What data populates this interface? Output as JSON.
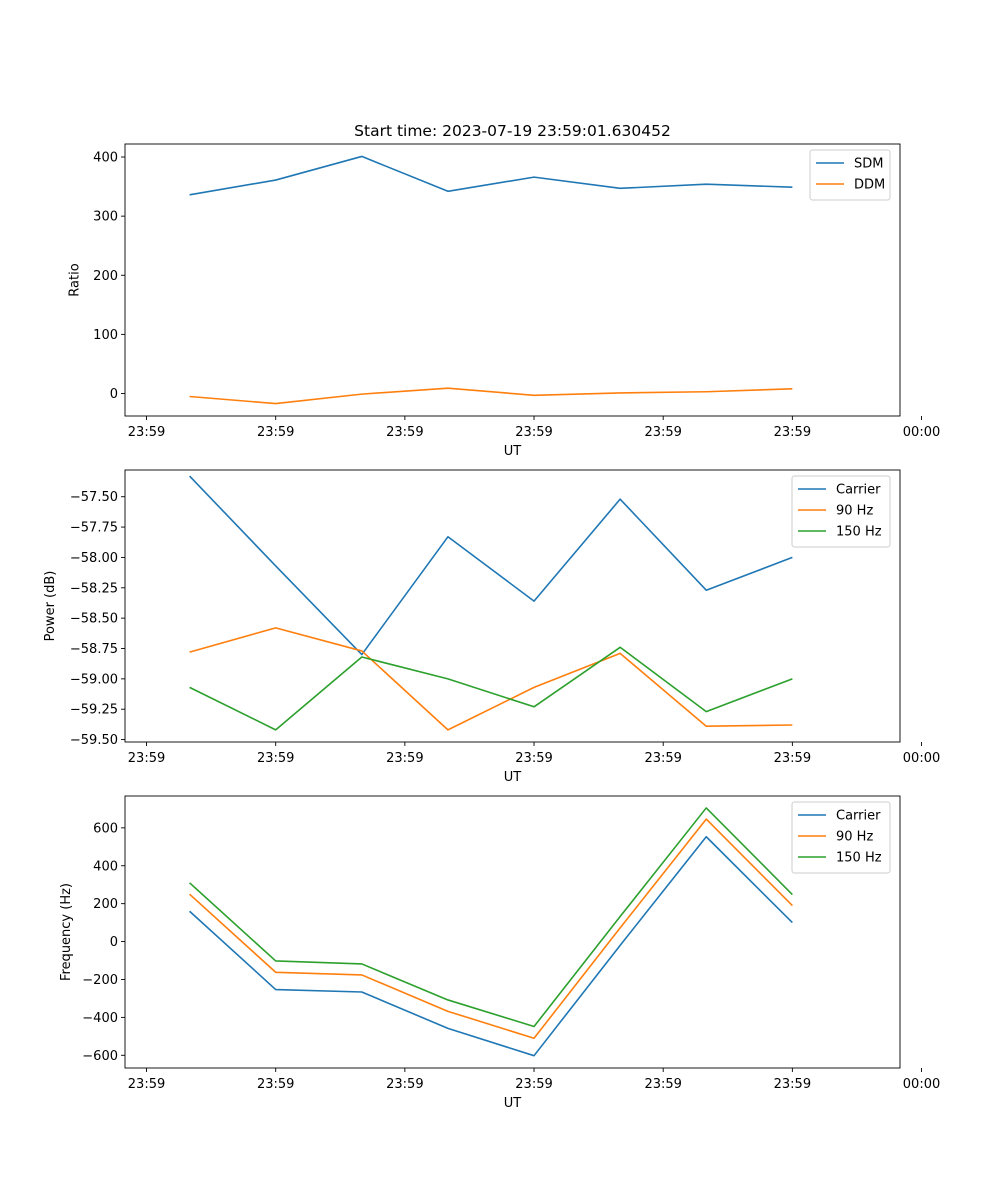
{
  "colors": {
    "series_1": "#1f77b4",
    "series_2": "#ff7f0e",
    "series_3": "#2ca02c",
    "axes": "#000000",
    "legend_border": "#cccccc"
  },
  "chart_data": [
    {
      "type": "line",
      "title": "Start time: 2023-07-19 23:59:01.630452",
      "xlabel": "UT",
      "ylabel": "Ratio",
      "x": [
        1,
        2,
        3,
        4,
        5,
        6,
        7,
        8
      ],
      "xlim": [
        0.25,
        9.25
      ],
      "xticks": [
        0.5,
        2,
        3.5,
        5,
        6.5,
        8,
        9.5
      ],
      "xtick_labels": [
        "23:59",
        "23:59",
        "23:59",
        "23:59",
        "23:59",
        "23:59",
        "00:00"
      ],
      "ylim": [
        -38,
        422
      ],
      "yticks": [
        0,
        100,
        200,
        300,
        400
      ],
      "ytick_labels": [
        "0",
        "100",
        "200",
        "300",
        "400"
      ],
      "legend_position": "top-right",
      "series": [
        {
          "name": "SDM",
          "values": [
            336,
            361,
            401,
            342,
            366,
            347,
            354,
            349
          ]
        },
        {
          "name": "DDM",
          "values": [
            -5,
            -17,
            -1,
            9,
            -3,
            1,
            3,
            8
          ]
        }
      ]
    },
    {
      "type": "line",
      "title": "",
      "xlabel": "UT",
      "ylabel": "Power (dB)",
      "x": [
        1,
        2,
        3,
        4,
        5,
        6,
        7,
        8
      ],
      "xlim": [
        0.25,
        9.25
      ],
      "xticks": [
        0.5,
        2,
        3.5,
        5,
        6.5,
        8,
        9.5
      ],
      "xtick_labels": [
        "23:59",
        "23:59",
        "23:59",
        "23:59",
        "23:59",
        "23:59",
        "00:00"
      ],
      "ylim": [
        -59.52,
        -57.28
      ],
      "yticks": [
        -57.5,
        -57.75,
        -58.0,
        -58.25,
        -58.5,
        -58.75,
        -59.0,
        -59.25,
        -59.5
      ],
      "ytick_labels": [
        "−57.50",
        "−57.75",
        "−58.00",
        "−58.25",
        "−58.50",
        "−58.75",
        "−59.00",
        "−59.25",
        "−59.50"
      ],
      "legend_position": "top-right",
      "series": [
        {
          "name": "Carrier",
          "values": [
            -57.33,
            -58.07,
            -58.8,
            -57.83,
            -58.36,
            -57.52,
            -58.27,
            -58.0
          ]
        },
        {
          "name": "90 Hz",
          "values": [
            -58.78,
            -58.58,
            -58.77,
            -59.42,
            -59.07,
            -58.79,
            -59.39,
            -59.38
          ]
        },
        {
          "name": "150 Hz",
          "values": [
            -59.07,
            -59.42,
            -58.82,
            -59.0,
            -59.23,
            -58.74,
            -59.27,
            -59.0
          ]
        }
      ]
    },
    {
      "type": "line",
      "title": "",
      "xlabel": "UT",
      "ylabel": "Frequency (Hz)",
      "x": [
        1,
        2,
        3,
        4,
        5,
        6,
        7,
        8
      ],
      "xlim": [
        0.25,
        9.25
      ],
      "xticks": [
        0.5,
        2,
        3.5,
        5,
        6.5,
        8,
        9.5
      ],
      "xtick_labels": [
        "23:59",
        "23:59",
        "23:59",
        "23:59",
        "23:59",
        "23:59",
        "00:00"
      ],
      "ylim": [
        -667,
        768
      ],
      "yticks": [
        -600,
        -400,
        -200,
        0,
        200,
        400,
        600
      ],
      "ytick_labels": [
        "−600",
        "−400",
        "−200",
        "0",
        "200",
        "400",
        "600"
      ],
      "legend_position": "top-right",
      "series": [
        {
          "name": "Carrier",
          "values": [
            160,
            -253,
            -266,
            -458,
            -602,
            -20,
            553,
            100
          ]
        },
        {
          "name": "90 Hz",
          "values": [
            250,
            -162,
            -176,
            -368,
            -510,
            72,
            646,
            190
          ]
        },
        {
          "name": "150 Hz",
          "values": [
            310,
            -102,
            -118,
            -308,
            -448,
            132,
            705,
            248
          ]
        }
      ]
    }
  ]
}
